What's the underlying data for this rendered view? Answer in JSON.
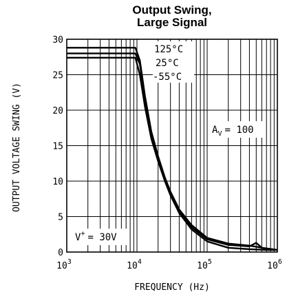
{
  "chart_data": {
    "type": "line",
    "title_lines": [
      "Output Swing,",
      "Large Signal"
    ],
    "xlabel": "FREQUENCY (Hz)",
    "ylabel": "OUTPUT VOLTAGE SWING (V)",
    "x_scale": "log",
    "xlim": [
      1000,
      1000000
    ],
    "ylim": [
      0,
      30
    ],
    "x_ticks": [
      {
        "value": 1000,
        "base": "10",
        "exp": "3"
      },
      {
        "value": 10000,
        "base": "10",
        "exp": "4"
      },
      {
        "value": 100000,
        "base": "10",
        "exp": "5"
      },
      {
        "value": 1000000,
        "base": "10",
        "exp": "6"
      }
    ],
    "y_ticks": [
      0,
      5,
      10,
      15,
      20,
      25,
      30
    ],
    "grid": true,
    "series": [
      {
        "name": "125°C",
        "x": [
          1000,
          9500,
          11000,
          13000,
          16000,
          20000,
          25000,
          30000,
          40000,
          60000,
          100000,
          200000,
          400000,
          700000,
          1000000
        ],
        "y": [
          28.8,
          28.8,
          27.0,
          22.0,
          17.0,
          13.5,
          10.5,
          8.5,
          6.0,
          3.8,
          2.0,
          1.2,
          0.9,
          0.5,
          0.3
        ]
      },
      {
        "name": "25°C",
        "x": [
          1000,
          9500,
          11000,
          13000,
          16000,
          20000,
          25000,
          30000,
          40000,
          60000,
          100000,
          200000,
          400000,
          500000,
          600000,
          1000000
        ],
        "y": [
          28.0,
          28.0,
          26.5,
          21.5,
          16.5,
          13.0,
          10.3,
          8.3,
          5.8,
          3.5,
          1.8,
          1.0,
          0.8,
          1.3,
          0.6,
          0.3
        ]
      },
      {
        "name": "-55°C",
        "x": [
          1000,
          9500,
          11000,
          13000,
          16000,
          20000,
          25000,
          30000,
          40000,
          60000,
          100000,
          200000,
          400000,
          700000,
          1000000
        ],
        "y": [
          27.4,
          27.4,
          25.0,
          20.5,
          16.0,
          12.8,
          10.0,
          8.0,
          5.5,
          3.2,
          1.5,
          0.6,
          0.4,
          0.3,
          0.3
        ]
      }
    ],
    "annotations": {
      "temp_labels": [
        "125°C",
        "25°C",
        "-55°C"
      ],
      "gain_base": "A",
      "gain_sub": "V",
      "gain_value": "= 100",
      "supply_base": "V",
      "supply_sup": "+",
      "supply_value": "= 30V"
    }
  }
}
